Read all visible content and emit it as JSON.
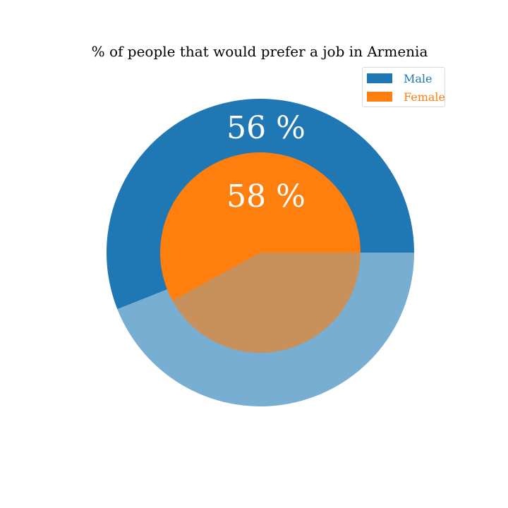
{
  "chart_data": {
    "type": "pie",
    "title": "% of people that would prefer a job in Armenia",
    "rings": [
      {
        "name": "Male",
        "ring": "outer",
        "value": 56,
        "label": "56 %",
        "color": "#1f77b4",
        "remainder_color": "#77aed2"
      },
      {
        "name": "Female",
        "ring": "inner",
        "value": 58,
        "label": "58 %",
        "color": "#ff7f0e",
        "remainder_color": "#c8905a"
      }
    ],
    "legend_placement": "top-right"
  }
}
